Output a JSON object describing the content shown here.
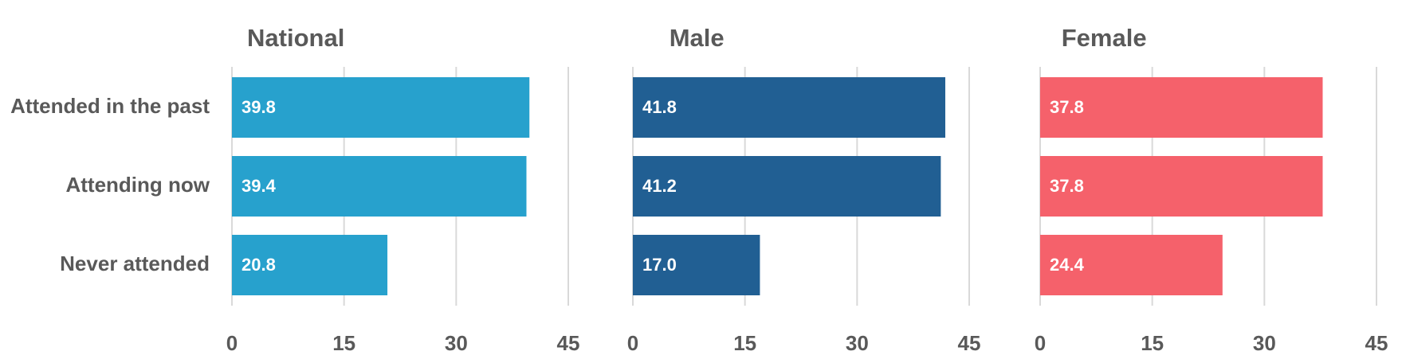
{
  "chart_data": [
    {
      "type": "bar",
      "orientation": "horizontal",
      "title": "National",
      "categories": [
        "Attended in the past",
        "Attending now",
        "Never attended"
      ],
      "values": [
        39.8,
        39.4,
        20.8
      ],
      "data_labels": [
        "39.8",
        "39.4",
        "20.8"
      ],
      "xlim": [
        0,
        45
      ],
      "xticks": [
        0,
        15,
        30,
        45
      ],
      "xtick_labels": [
        "0",
        "15",
        "30",
        "45"
      ],
      "grid": true,
      "color": "#27a1cd"
    },
    {
      "type": "bar",
      "orientation": "horizontal",
      "title": "Male",
      "categories": [
        "Attended in the past",
        "Attending now",
        "Never attended"
      ],
      "values": [
        41.8,
        41.2,
        17.0
      ],
      "data_labels": [
        "41.8",
        "41.2",
        "17.0"
      ],
      "xlim": [
        0,
        45
      ],
      "xticks": [
        0,
        15,
        30,
        45
      ],
      "xtick_labels": [
        "0",
        "15",
        "30",
        "45"
      ],
      "grid": true,
      "color": "#215f93"
    },
    {
      "type": "bar",
      "orientation": "horizontal",
      "title": "Female",
      "categories": [
        "Attended in the past",
        "Attending now",
        "Never attended"
      ],
      "values": [
        37.8,
        37.8,
        24.4
      ],
      "data_labels": [
        "37.8",
        "37.8",
        "24.4"
      ],
      "xlim": [
        0,
        45
      ],
      "xticks": [
        0,
        15,
        30,
        45
      ],
      "xtick_labels": [
        "0",
        "15",
        "30",
        "45"
      ],
      "grid": true,
      "color": "#f5616b"
    }
  ]
}
